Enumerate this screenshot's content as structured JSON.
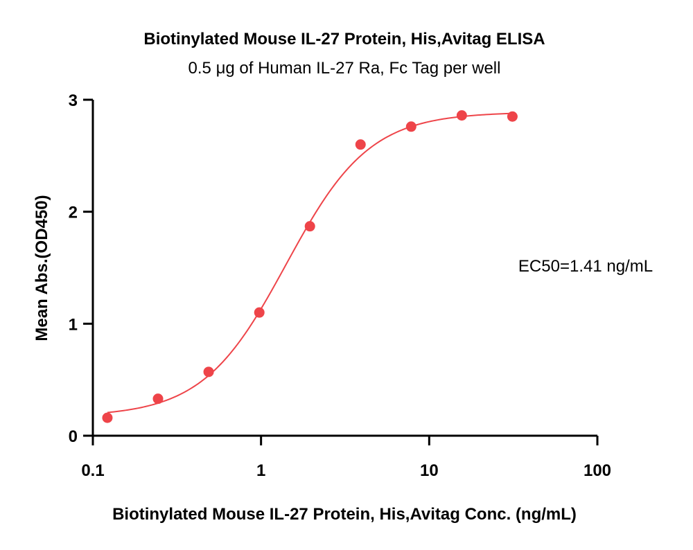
{
  "chart_data": {
    "type": "scatter",
    "title": "Biotinylated Mouse IL-27 Protein, His,Avitag ELISA",
    "subtitle": "0.5 μg of Human IL-27 Ra, Fc Tag per well",
    "xlabel": "Biotinylated Mouse IL-27 Protein, His,Avitag Conc. (ng/mL)",
    "ylabel": "Mean Abs.(OD450)",
    "xscale": "log",
    "xlim": [
      0.1,
      100
    ],
    "ylim": [
      0,
      3
    ],
    "xticks": [
      0.1,
      1,
      10,
      100
    ],
    "xtick_labels": [
      "0.1",
      "1",
      "10",
      "100"
    ],
    "yticks": [
      0,
      1,
      2,
      3
    ],
    "ytick_labels": [
      "0",
      "1",
      "2",
      "3"
    ],
    "grid": false,
    "color": "#ee4449",
    "series": [
      {
        "x": [
          0.122,
          0.244,
          0.488,
          0.977,
          1.953,
          3.906,
          7.813,
          15.625,
          31.25
        ],
        "y": [
          0.16,
          0.33,
          0.57,
          1.1,
          1.87,
          2.6,
          2.76,
          2.86,
          2.85
        ]
      }
    ],
    "fit": {
      "type": "4PL",
      "bottom": 0.17,
      "top": 2.89,
      "ec50": 1.41,
      "hill": 1.75
    },
    "annotations": [
      "EC50=1.41 ng/mL"
    ]
  }
}
